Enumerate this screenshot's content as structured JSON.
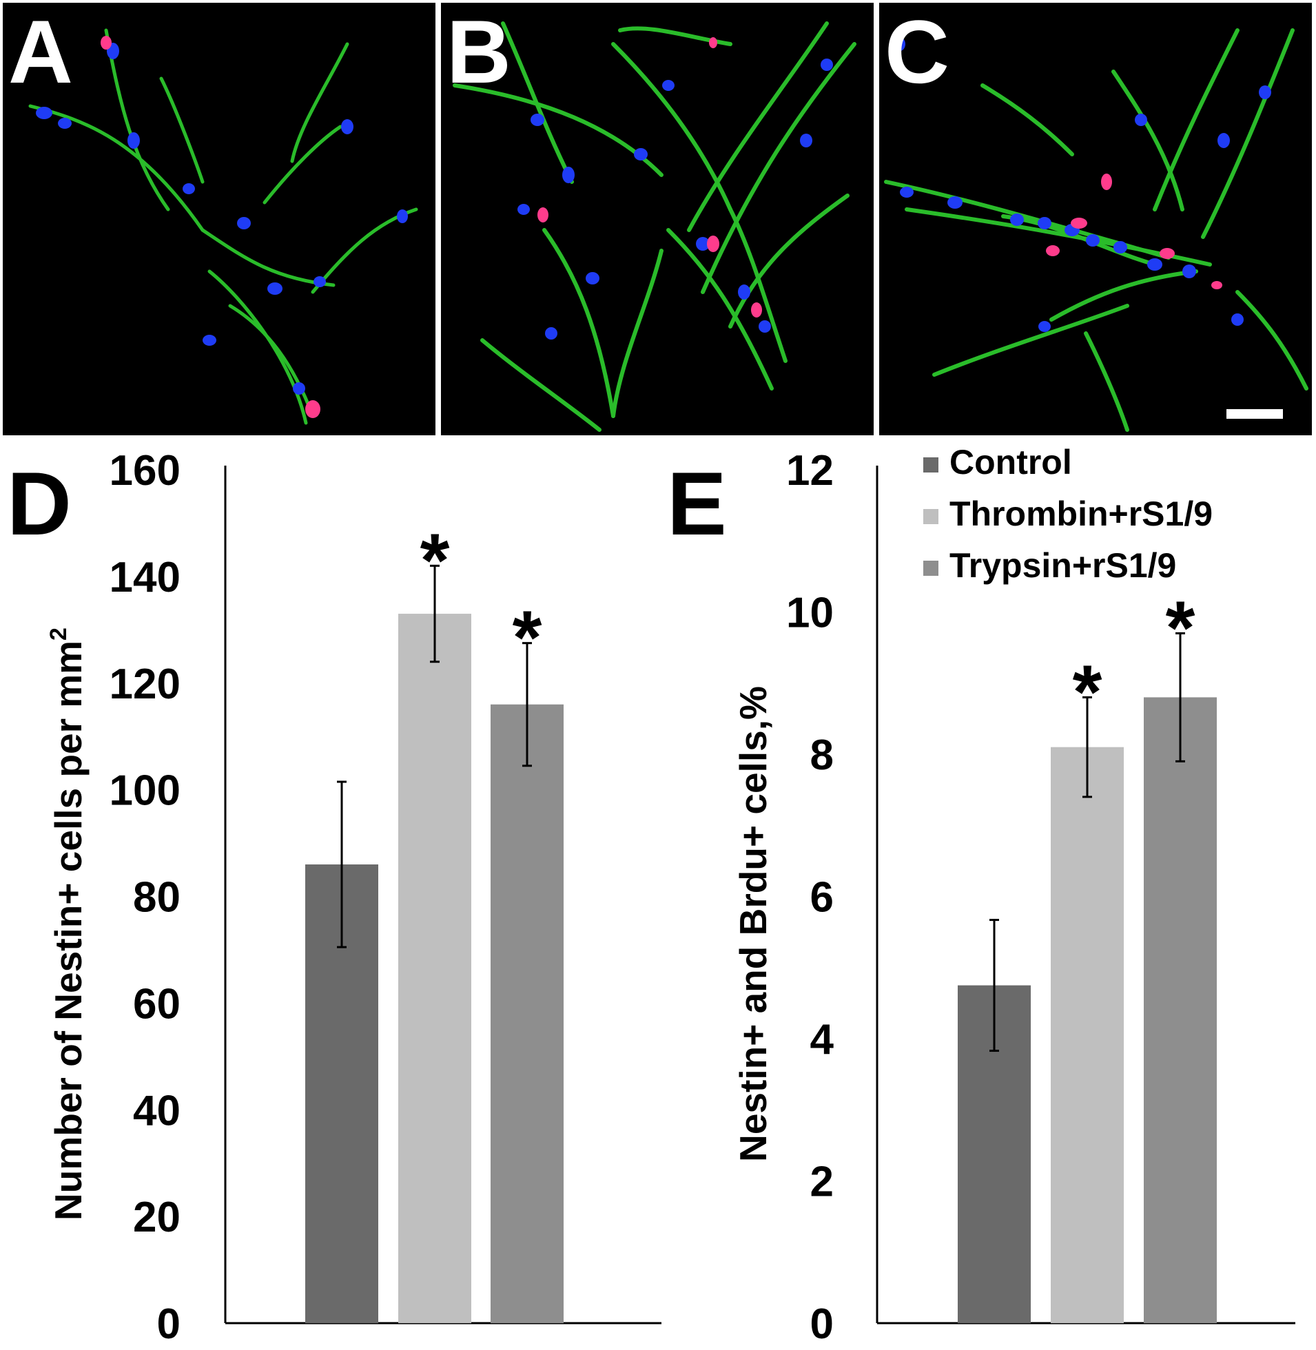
{
  "panels": [
    {
      "label": "A"
    },
    {
      "label": "B"
    },
    {
      "label": "C"
    }
  ],
  "colors": {
    "control": "#6a6a6a",
    "thrombin": "#bfbfbf",
    "trypsin": "#8e8e8e",
    "nestin": "#2fd12f",
    "dapi": "#1f3cf5",
    "brdu": "#ff3c8c"
  },
  "legend": [
    {
      "name": "Control",
      "color_key": "control"
    },
    {
      "name": "Thrombin+rS1/9",
      "color_key": "thrombin"
    },
    {
      "name": "Trypsin+rS1/9",
      "color_key": "trypsin"
    }
  ],
  "chart_data": [
    {
      "panel_label": "D",
      "type": "bar",
      "categories": [
        "Control",
        "Thrombin+rS1/9",
        "Trypsin+rS1/9"
      ],
      "values": [
        86,
        133,
        116
      ],
      "errors": [
        15.5,
        9,
        11.5
      ],
      "significant": [
        false,
        true,
        true
      ],
      "significance_marker": "*",
      "ylabel": "Number of Nestin+ cells per mm",
      "ylabel_superscript": "2",
      "ylim": [
        0,
        160
      ],
      "yticks": [
        0,
        20,
        40,
        60,
        80,
        100,
        120,
        140,
        160
      ],
      "grid": false
    },
    {
      "panel_label": "E",
      "type": "bar",
      "categories": [
        "Control",
        "Thrombin+rS1/9",
        "Trypsin+rS1/9"
      ],
      "values": [
        4.75,
        8.1,
        8.8
      ],
      "errors": [
        0.92,
        0.7,
        0.9
      ],
      "significant": [
        false,
        true,
        true
      ],
      "significance_marker": "*",
      "ylabel": "Nestin+ and Brdu+ cells,%",
      "ylim": [
        0,
        12
      ],
      "yticks": [
        0,
        2,
        4,
        6,
        8,
        10,
        12
      ],
      "grid": false,
      "legend_position": "top-right"
    }
  ]
}
